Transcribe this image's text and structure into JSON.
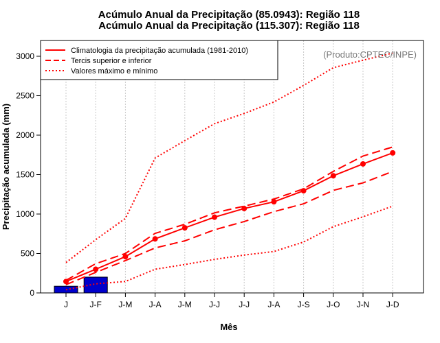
{
  "chart_data": {
    "type": "line",
    "title_line1": "Acúmulo Anual da Precipitação (85.0943): Região 118",
    "title_line2": "Acúmulo Anual da Precipitação (115.307): Região 118",
    "xlabel": "Mês",
    "ylabel": "Precipitação acumulada (mm)",
    "watermark": "(Produto:CPTEC/INPE)",
    "categories": [
      "J",
      "J-F",
      "J-M",
      "J-A",
      "J-M",
      "J-J",
      "J-J",
      "J-A",
      "J-S",
      "J-O",
      "J-N",
      "J-D"
    ],
    "ylim": [
      0,
      3200
    ],
    "yticks": [
      0,
      500,
      1000,
      1500,
      2000,
      2500,
      3000
    ],
    "grid": "vertical dotted",
    "legend_position": "top-left",
    "bars": {
      "color": "#0000cc",
      "values": [
        85.0943,
        200.4013
      ]
    },
    "series": [
      {
        "name": "Climatologia da precipitação acumulada (1981-2010)",
        "style": "solid",
        "color": "#ff0000",
        "markers": true,
        "values": [
          145,
          300,
          460,
          685,
          825,
          960,
          1070,
          1155,
          1295,
          1485,
          1635,
          1775
        ]
      },
      {
        "name": "Tercis superior e inferior",
        "style": "dashed",
        "color": "#ff0000",
        "values": [
          160,
          370,
          500,
          755,
          870,
          1015,
          1100,
          1190,
          1320,
          1540,
          1735,
          1850
        ]
      },
      {
        "name": "",
        "style": "dashed",
        "color": "#ff0000",
        "values": [
          105,
          260,
          410,
          570,
          660,
          800,
          905,
          1030,
          1130,
          1300,
          1395,
          1540
        ]
      },
      {
        "name": "Valores máximo e mínimo",
        "style": "dotted",
        "color": "#ff0000",
        "values": [
          385,
          675,
          945,
          1710,
          1930,
          2145,
          2275,
          2420,
          2630,
          2855,
          2950,
          3040
        ]
      },
      {
        "name": "",
        "style": "dotted",
        "color": "#ff0000",
        "values": [
          40,
          115,
          145,
          300,
          360,
          425,
          480,
          525,
          645,
          840,
          965,
          1100
        ]
      }
    ]
  }
}
